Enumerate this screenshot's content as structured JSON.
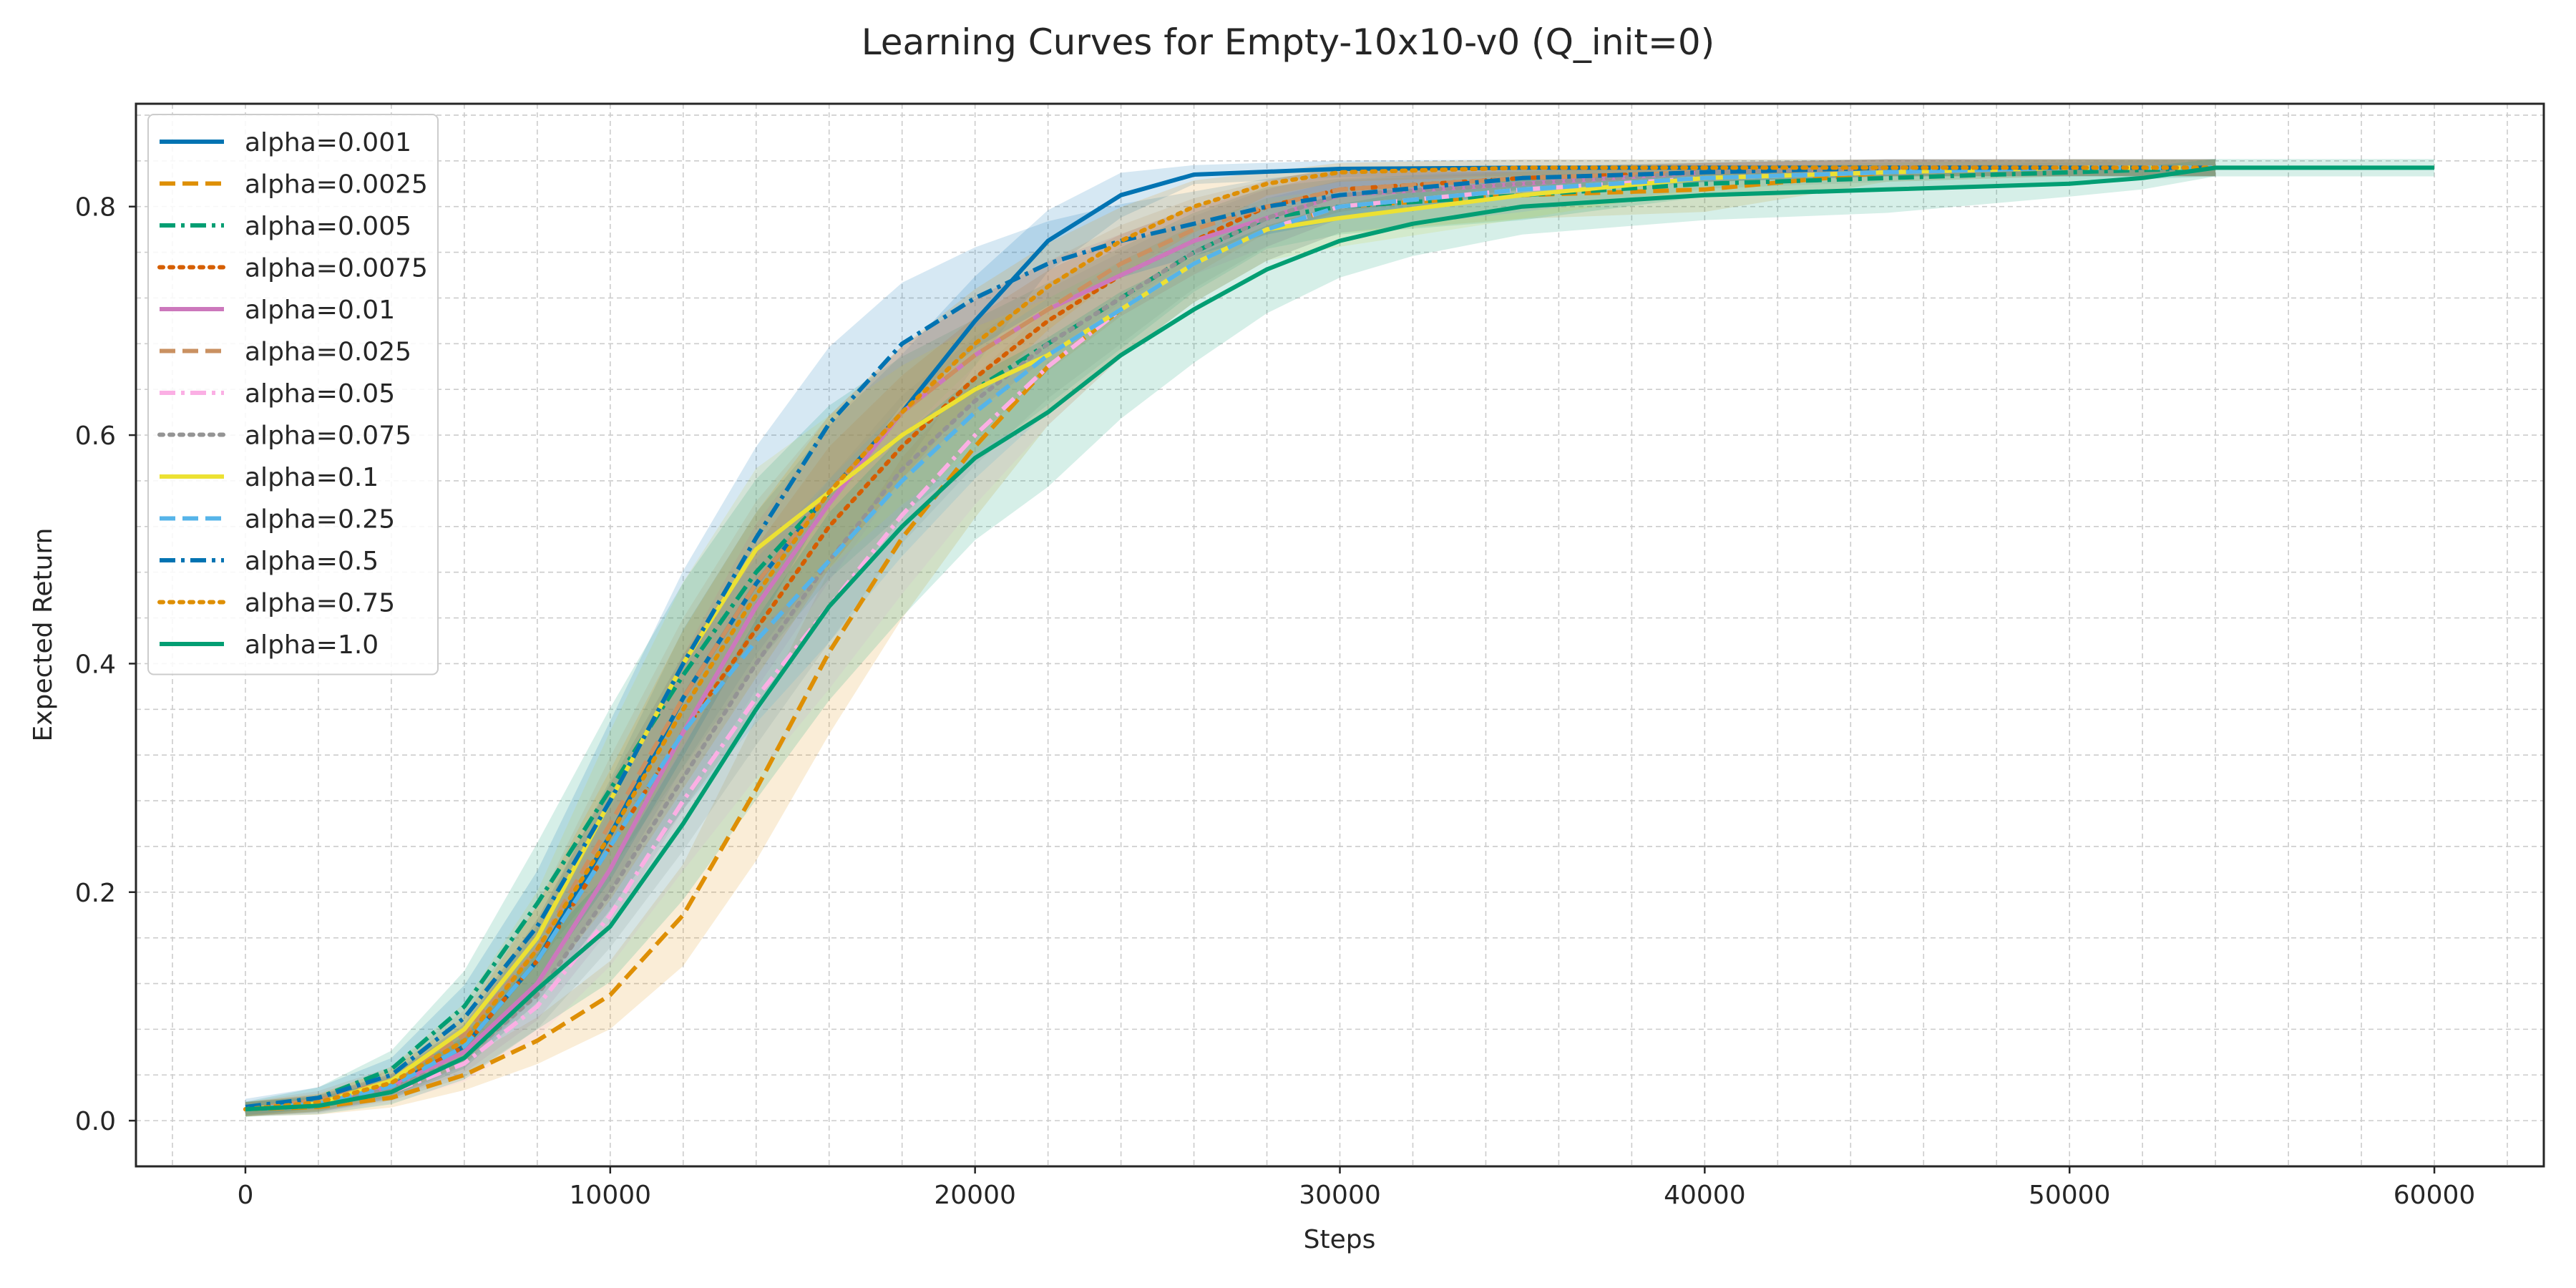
{
  "chart_data": {
    "type": "line",
    "title": "Learning Curves for Empty-10x10-v0 (Q_init=0)",
    "xlabel": "Steps",
    "ylabel": "Expected Return",
    "xlim": [
      -3000,
      63000
    ],
    "ylim": [
      -0.04,
      0.89
    ],
    "xticks": [
      0,
      10000,
      20000,
      30000,
      40000,
      50000,
      60000
    ],
    "xtick_labels": [
      "0",
      "10000",
      "20000",
      "30000",
      "40000",
      "50000",
      "60000"
    ],
    "yticks": [
      0.0,
      0.2,
      0.4,
      0.6,
      0.8
    ],
    "ytick_labels": [
      "0.0",
      "0.2",
      "0.4",
      "0.6",
      "0.8"
    ],
    "grid": true,
    "legend_position": "upper-left",
    "series": [
      {
        "name": "alpha=0.001",
        "color": "#0173b2",
        "dash": "solid",
        "x": [
          0,
          2000,
          4000,
          6000,
          8000,
          10000,
          12000,
          14000,
          16000,
          18000,
          20000,
          22000,
          24000,
          26000,
          30000,
          35000,
          40000,
          45000,
          50000,
          54000
        ],
        "y": [
          0.01,
          0.015,
          0.03,
          0.065,
          0.14,
          0.25,
          0.37,
          0.47,
          0.55,
          0.62,
          0.7,
          0.77,
          0.81,
          0.828,
          0.833,
          0.834,
          0.834,
          0.834,
          0.834,
          0.834
        ],
        "band": 0.05
      },
      {
        "name": "alpha=0.0025",
        "color": "#de8f05",
        "dash": "dashed",
        "x": [
          0,
          2000,
          4000,
          6000,
          8000,
          10000,
          12000,
          14000,
          16000,
          18000,
          20000,
          22000,
          24000,
          26000,
          28000,
          30000,
          35000,
          40000,
          45000,
          50000,
          54000
        ],
        "y": [
          0.01,
          0.012,
          0.02,
          0.04,
          0.07,
          0.11,
          0.18,
          0.29,
          0.41,
          0.51,
          0.59,
          0.66,
          0.71,
          0.75,
          0.78,
          0.8,
          0.81,
          0.815,
          0.83,
          0.834,
          0.834
        ],
        "band": 0.06
      },
      {
        "name": "alpha=0.005",
        "color": "#029e73",
        "dash": "dashdot",
        "x": [
          0,
          2000,
          4000,
          6000,
          8000,
          10000,
          12000,
          14000,
          16000,
          18000,
          20000,
          22000,
          24000,
          26000,
          28000,
          30000,
          35000,
          40000,
          45000,
          50000,
          54000
        ],
        "y": [
          0.01,
          0.02,
          0.045,
          0.1,
          0.19,
          0.29,
          0.39,
          0.48,
          0.55,
          0.6,
          0.64,
          0.68,
          0.72,
          0.76,
          0.79,
          0.8,
          0.81,
          0.82,
          0.825,
          0.83,
          0.834
        ],
        "band": 0.07
      },
      {
        "name": "alpha=0.0075",
        "color": "#d55e00",
        "dash": "dotted",
        "x": [
          0,
          2000,
          4000,
          6000,
          8000,
          10000,
          12000,
          14000,
          16000,
          18000,
          20000,
          22000,
          24000,
          26000,
          28000,
          30000,
          35000,
          40000,
          45000,
          50000,
          54000
        ],
        "y": [
          0.01,
          0.015,
          0.03,
          0.065,
          0.14,
          0.24,
          0.34,
          0.43,
          0.52,
          0.59,
          0.65,
          0.7,
          0.74,
          0.77,
          0.8,
          0.815,
          0.825,
          0.83,
          0.834,
          0.834,
          0.834
        ],
        "band": 0.06
      },
      {
        "name": "alpha=0.01",
        "color": "#cc78bc",
        "dash": "solid",
        "x": [
          0,
          2000,
          4000,
          6000,
          8000,
          10000,
          12000,
          14000,
          16000,
          18000,
          20000,
          22000,
          24000,
          26000,
          28000,
          30000,
          35000,
          40000,
          45000,
          50000,
          54000
        ],
        "y": [
          0.01,
          0.015,
          0.03,
          0.06,
          0.12,
          0.22,
          0.34,
          0.45,
          0.54,
          0.62,
          0.67,
          0.71,
          0.74,
          0.77,
          0.79,
          0.81,
          0.82,
          0.83,
          0.834,
          0.834,
          0.834
        ],
        "band": 0.06
      },
      {
        "name": "alpha=0.025",
        "color": "#ca9161",
        "dash": "dashed",
        "x": [
          0,
          2000,
          4000,
          6000,
          8000,
          10000,
          12000,
          14000,
          16000,
          18000,
          20000,
          22000,
          24000,
          26000,
          28000,
          30000,
          35000,
          40000,
          45000,
          50000,
          54000
        ],
        "y": [
          0.01,
          0.018,
          0.035,
          0.075,
          0.15,
          0.26,
          0.37,
          0.47,
          0.55,
          0.62,
          0.67,
          0.71,
          0.75,
          0.78,
          0.8,
          0.815,
          0.825,
          0.83,
          0.834,
          0.834,
          0.834
        ],
        "band": 0.06
      },
      {
        "name": "alpha=0.05",
        "color": "#fbafe4",
        "dash": "dashdot",
        "x": [
          0,
          2000,
          4000,
          6000,
          8000,
          10000,
          12000,
          14000,
          16000,
          18000,
          20000,
          22000,
          24000,
          26000,
          28000,
          30000,
          35000,
          40000,
          45000,
          50000,
          54000
        ],
        "y": [
          0.01,
          0.013,
          0.025,
          0.05,
          0.1,
          0.18,
          0.28,
          0.37,
          0.45,
          0.53,
          0.6,
          0.66,
          0.71,
          0.75,
          0.78,
          0.8,
          0.815,
          0.825,
          0.83,
          0.834,
          0.834
        ],
        "band": 0.06
      },
      {
        "name": "alpha=0.075",
        "color": "#949494",
        "dash": "dotted",
        "x": [
          0,
          2000,
          4000,
          6000,
          8000,
          10000,
          12000,
          14000,
          16000,
          18000,
          20000,
          22000,
          24000,
          26000,
          28000,
          30000,
          35000,
          40000,
          45000,
          50000,
          54000
        ],
        "y": [
          0.01,
          0.014,
          0.028,
          0.055,
          0.11,
          0.2,
          0.3,
          0.4,
          0.49,
          0.57,
          0.63,
          0.68,
          0.72,
          0.76,
          0.79,
          0.81,
          0.82,
          0.83,
          0.834,
          0.834,
          0.834
        ],
        "band": 0.06
      },
      {
        "name": "alpha=0.1",
        "color": "#ece133",
        "dash": "solid",
        "x": [
          0,
          2000,
          4000,
          6000,
          8000,
          10000,
          12000,
          14000,
          16000,
          18000,
          20000,
          22000,
          24000,
          26000,
          28000,
          30000,
          35000,
          40000,
          45000,
          50000,
          54000
        ],
        "y": [
          0.01,
          0.015,
          0.035,
          0.08,
          0.16,
          0.28,
          0.4,
          0.5,
          0.55,
          0.6,
          0.64,
          0.67,
          0.71,
          0.75,
          0.78,
          0.79,
          0.81,
          0.825,
          0.83,
          0.834,
          0.834
        ],
        "band": 0.06
      },
      {
        "name": "alpha=0.25",
        "color": "#56b4e9",
        "dash": "dashed",
        "x": [
          0,
          2000,
          4000,
          6000,
          8000,
          10000,
          12000,
          14000,
          16000,
          18000,
          20000,
          22000,
          24000,
          26000,
          28000,
          30000,
          35000,
          40000,
          45000,
          50000,
          54000
        ],
        "y": [
          0.01,
          0.015,
          0.03,
          0.065,
          0.14,
          0.24,
          0.34,
          0.42,
          0.49,
          0.56,
          0.62,
          0.67,
          0.71,
          0.75,
          0.78,
          0.8,
          0.815,
          0.825,
          0.83,
          0.834,
          0.834
        ],
        "band": 0.06
      },
      {
        "name": "alpha=0.5",
        "color": "#0173b2",
        "dash": "dashdot",
        "x": [
          0,
          2000,
          4000,
          6000,
          8000,
          10000,
          12000,
          14000,
          16000,
          18000,
          20000,
          22000,
          24000,
          26000,
          28000,
          30000,
          35000,
          40000,
          45000,
          50000,
          54000
        ],
        "y": [
          0.012,
          0.02,
          0.04,
          0.09,
          0.17,
          0.28,
          0.4,
          0.51,
          0.61,
          0.68,
          0.72,
          0.75,
          0.77,
          0.785,
          0.8,
          0.81,
          0.825,
          0.83,
          0.834,
          0.834,
          0.834
        ],
        "band": 0.07
      },
      {
        "name": "alpha=0.75",
        "color": "#de8f05",
        "dash": "dotted",
        "x": [
          0,
          2000,
          4000,
          6000,
          8000,
          10000,
          12000,
          14000,
          16000,
          18000,
          20000,
          22000,
          24000,
          26000,
          28000,
          30000,
          35000,
          40000,
          45000,
          50000,
          54000
        ],
        "y": [
          0.01,
          0.016,
          0.033,
          0.07,
          0.15,
          0.25,
          0.36,
          0.46,
          0.55,
          0.62,
          0.68,
          0.73,
          0.77,
          0.8,
          0.82,
          0.83,
          0.834,
          0.834,
          0.834,
          0.834,
          0.834
        ],
        "band": 0.06
      },
      {
        "name": "alpha=1.0",
        "color": "#029e73",
        "dash": "solid",
        "x": [
          0,
          2000,
          4000,
          6000,
          8000,
          10000,
          12000,
          14000,
          16000,
          18000,
          20000,
          22000,
          24000,
          26000,
          28000,
          30000,
          32000,
          35000,
          40000,
          45000,
          50000,
          52000,
          54000,
          55000,
          60000
        ],
        "y": [
          0.01,
          0.013,
          0.025,
          0.055,
          0.115,
          0.17,
          0.26,
          0.36,
          0.45,
          0.52,
          0.58,
          0.62,
          0.67,
          0.71,
          0.745,
          0.77,
          0.785,
          0.8,
          0.81,
          0.815,
          0.82,
          0.825,
          0.834,
          0.834,
          0.834
        ],
        "band": 0.07
      }
    ]
  }
}
